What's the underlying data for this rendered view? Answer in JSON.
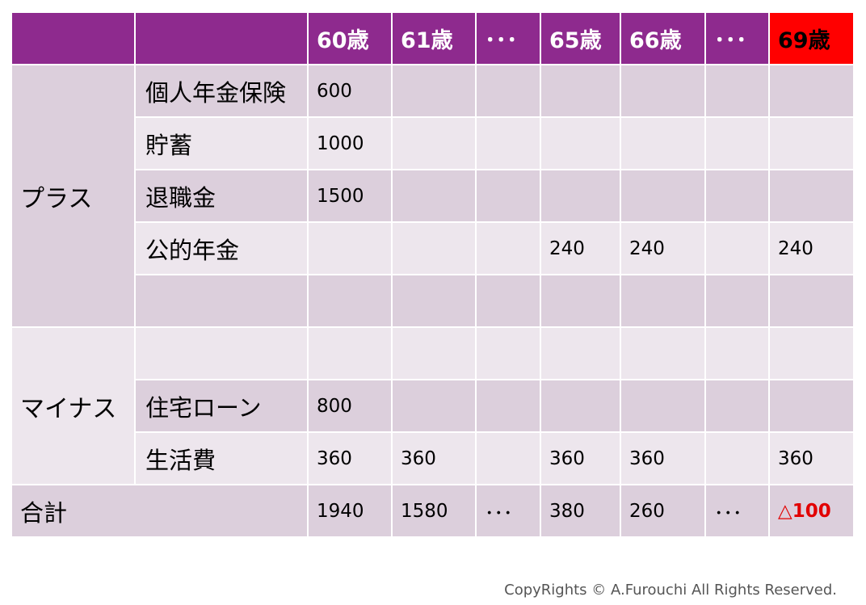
{
  "table": {
    "header": [
      "",
      "",
      "60歳",
      "61歳",
      "･･･",
      "65歳",
      "66歳",
      "･･･",
      "69歳"
    ],
    "highlight_header_color": "#ff0000",
    "header_color": "#8e2a8e",
    "groups": {
      "plus": "プラス",
      "minus": "マイナス"
    },
    "rows": [
      {
        "label": "個人年金保険",
        "values": [
          "600",
          "",
          "",
          "",
          "",
          "",
          ""
        ]
      },
      {
        "label": "貯蓄",
        "values": [
          "1000",
          "",
          "",
          "",
          "",
          "",
          ""
        ]
      },
      {
        "label": "退職金",
        "values": [
          "1500",
          "",
          "",
          "",
          "",
          "",
          ""
        ]
      },
      {
        "label": "公的年金",
        "values": [
          "",
          "",
          "",
          "240",
          "240",
          "",
          "240"
        ]
      },
      {
        "label": "",
        "values": [
          "",
          "",
          "",
          "",
          "",
          "",
          ""
        ]
      },
      {
        "label": "",
        "values": [
          "",
          "",
          "",
          "",
          "",
          "",
          ""
        ]
      },
      {
        "label": "住宅ローン",
        "values": [
          "800",
          "",
          "",
          "",
          "",
          "",
          ""
        ]
      },
      {
        "label": "生活費",
        "values": [
          "360",
          "360",
          "",
          "360",
          "360",
          "",
          "360"
        ]
      }
    ],
    "total": {
      "label": "合計",
      "values": [
        "1940",
        "1580",
        "･･･",
        "380",
        "260",
        "･･･",
        "△100"
      ]
    }
  },
  "copyright": "CopyRights © A.Furouchi All Rights Reserved."
}
